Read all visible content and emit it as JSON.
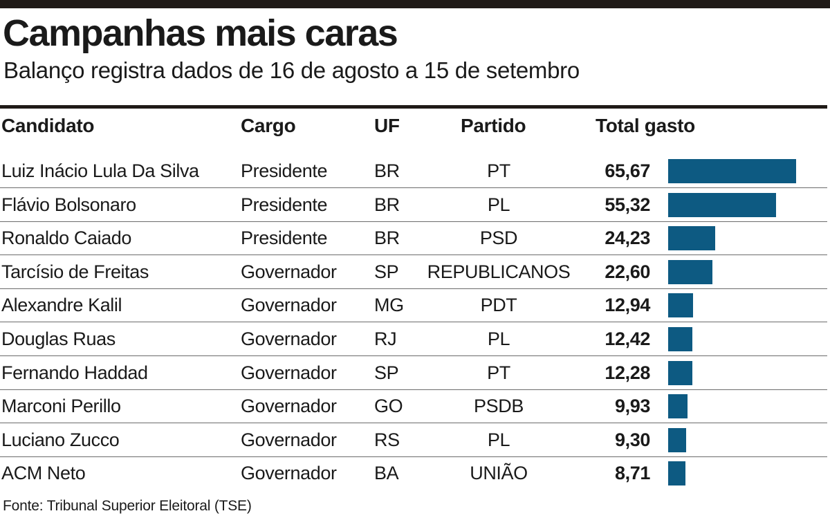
{
  "title": "Campanhas mais caras",
  "subtitle": "Balanço registra dados de 16 de agosto a 15 de setembro",
  "source": "Fonte: Tribunal Superior Eleitoral (TSE)",
  "colors": {
    "bar": "#0d5a82",
    "rule": "#1f1a17"
  },
  "chart_data": {
    "type": "table",
    "columns": [
      "Candidato",
      "Cargo",
      "UF",
      "Partido",
      "Total gasto"
    ],
    "rows": [
      {
        "candidato": "Luiz Inácio Lula Da Silva",
        "cargo": "Presidente",
        "uf": "BR",
        "partido": "PT",
        "total": "65,67",
        "value": 65.67
      },
      {
        "candidato": "Flávio Bolsonaro",
        "cargo": "Presidente",
        "uf": "BR",
        "partido": "PL",
        "total": "55,32",
        "value": 55.32
      },
      {
        "candidato": "Ronaldo Caiado",
        "cargo": "Presidente",
        "uf": "BR",
        "partido": "PSD",
        "total": "24,23",
        "value": 24.23
      },
      {
        "candidato": "Tarcísio de Freitas",
        "cargo": "Governador",
        "uf": "SP",
        "partido": "REPUBLICANOS",
        "total": "22,60",
        "value": 22.6
      },
      {
        "candidato": "Alexandre Kalil",
        "cargo": "Governador",
        "uf": "MG",
        "partido": "PDT",
        "total": "12,94",
        "value": 12.94
      },
      {
        "candidato": "Douglas Ruas",
        "cargo": "Governador",
        "uf": "RJ",
        "partido": "PL",
        "total": "12,42",
        "value": 12.42
      },
      {
        "candidato": "Fernando Haddad",
        "cargo": "Governador",
        "uf": "SP",
        "partido": "PT",
        "total": "12,28",
        "value": 12.28
      },
      {
        "candidato": "Marconi Perillo",
        "cargo": "Governador",
        "uf": "GO",
        "partido": "PSDB",
        "total": "9,93",
        "value": 9.93
      },
      {
        "candidato": "Luciano Zucco",
        "cargo": "Governador",
        "uf": "RS",
        "partido": "PL",
        "total": "9,30",
        "value": 9.3
      },
      {
        "candidato": "ACM Neto",
        "cargo": "Governador",
        "uf": "BA",
        "partido": "UNIÃO",
        "total": "8,71",
        "value": 8.71
      }
    ]
  }
}
